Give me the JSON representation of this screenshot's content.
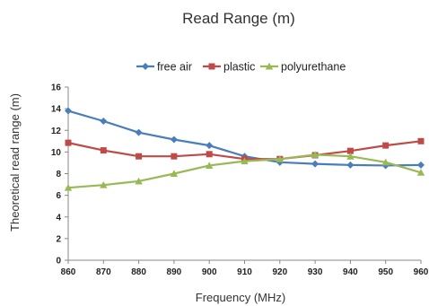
{
  "chart_data": {
    "type": "line",
    "title": "Read Range (m)",
    "xlabel": "Frequency (MHz)",
    "ylabel": "Theoretical read range (m)",
    "x": [
      860,
      870,
      880,
      890,
      900,
      910,
      920,
      930,
      940,
      950,
      960
    ],
    "xlim": [
      860,
      960
    ],
    "ylim": [
      0,
      16
    ],
    "yticks": [
      0,
      2,
      4,
      6,
      8,
      10,
      12,
      14,
      16
    ],
    "grid": false,
    "legend_position": "top",
    "series": [
      {
        "name": "free air",
        "color": "#4a7ebb",
        "marker": "diamond",
        "values": [
          13.8,
          12.85,
          11.8,
          11.15,
          10.6,
          9.6,
          9.05,
          8.9,
          8.8,
          8.75,
          8.8
        ]
      },
      {
        "name": "plastic",
        "color": "#be4b48",
        "marker": "square",
        "values": [
          10.85,
          10.15,
          9.6,
          9.6,
          9.8,
          9.35,
          9.35,
          9.7,
          10.1,
          10.6,
          11.0
        ]
      },
      {
        "name": "polyurethane",
        "color": "#98b954",
        "marker": "triangle",
        "values": [
          6.7,
          6.95,
          7.3,
          8.0,
          8.75,
          9.15,
          9.35,
          9.75,
          9.6,
          9.05,
          8.1
        ]
      }
    ]
  }
}
